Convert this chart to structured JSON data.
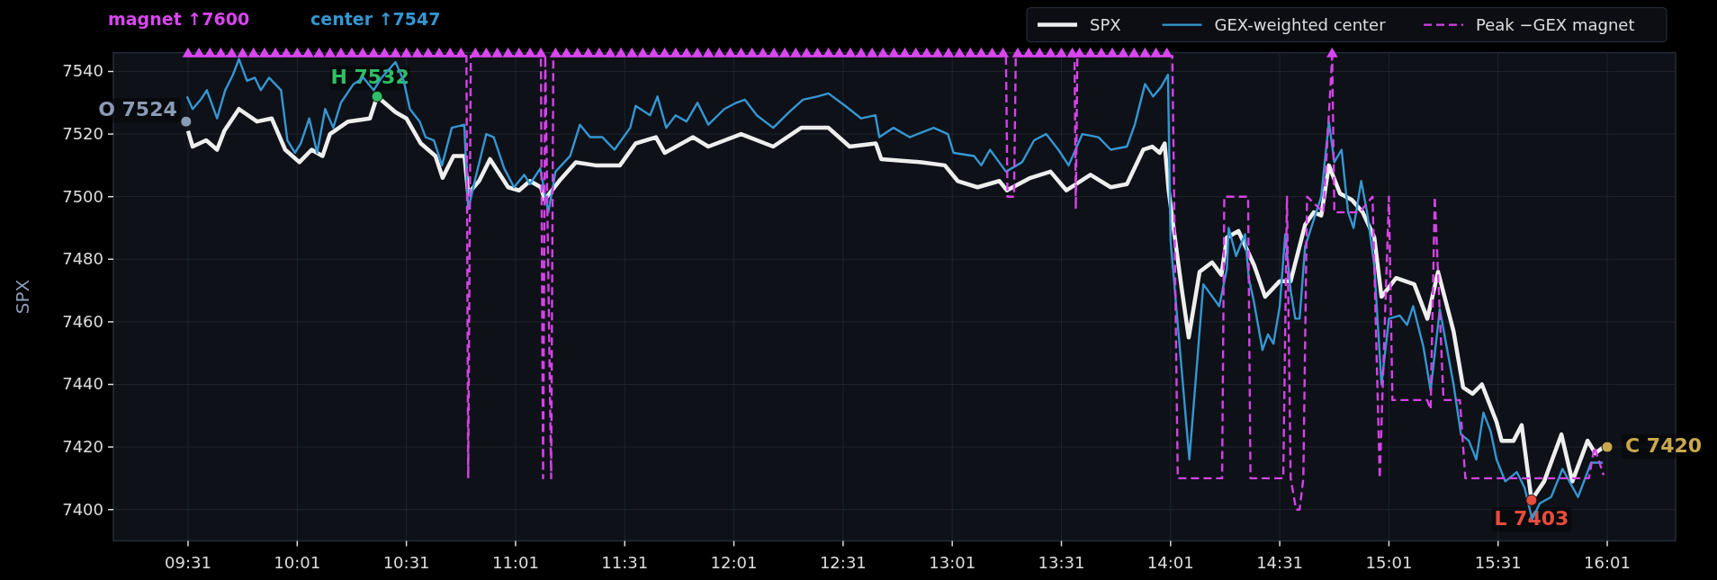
{
  "chart_data": {
    "type": "line",
    "ylabel": "SPX",
    "xlim": [
      9.175,
      16.33
    ],
    "ylim": [
      7390,
      7546
    ],
    "xticks": [
      {
        "value": 9.517,
        "label": "09:31"
      },
      {
        "value": 10.017,
        "label": "10:01"
      },
      {
        "value": 10.517,
        "label": "10:31"
      },
      {
        "value": 11.017,
        "label": "11:01"
      },
      {
        "value": 11.517,
        "label": "11:31"
      },
      {
        "value": 12.017,
        "label": "12:01"
      },
      {
        "value": 12.517,
        "label": "12:31"
      },
      {
        "value": 13.017,
        "label": "13:01"
      },
      {
        "value": 13.517,
        "label": "13:31"
      },
      {
        "value": 14.017,
        "label": "14:01"
      },
      {
        "value": 14.517,
        "label": "14:31"
      },
      {
        "value": 15.017,
        "label": "15:01"
      },
      {
        "value": 15.517,
        "label": "15:31"
      },
      {
        "value": 16.017,
        "label": "16:01"
      }
    ],
    "yticks": [
      7400,
      7420,
      7440,
      7460,
      7480,
      7500,
      7520,
      7540
    ],
    "grid": true,
    "legend": "top right",
    "series": [
      {
        "name": "SPX",
        "color": "#eeeeee",
        "x": [
          9.517,
          9.538,
          9.6,
          9.65,
          9.683,
          9.75,
          9.833,
          9.9,
          9.962,
          10.027,
          10.083,
          10.133,
          10.167,
          10.25,
          10.35,
          10.383,
          10.467,
          10.517,
          10.583,
          10.65,
          10.683,
          10.733,
          10.783,
          10.8,
          10.85,
          10.9,
          10.983,
          11.033,
          11.083,
          11.133,
          11.15,
          11.217,
          11.293,
          11.383,
          11.495,
          11.567,
          11.66,
          11.7,
          11.83,
          11.9,
          12.05,
          12.197,
          12.325,
          12.45,
          12.547,
          12.667,
          12.692,
          12.877,
          12.983,
          13.042,
          13.133,
          13.233,
          13.267,
          13.375,
          13.467,
          13.54,
          13.65,
          13.743,
          13.817,
          13.892,
          13.933,
          13.967,
          13.99,
          14.008,
          14.067,
          14.1,
          14.15,
          14.207,
          14.25,
          14.275,
          14.328,
          14.4,
          14.45,
          14.517,
          14.567,
          14.633,
          14.673,
          14.707,
          14.742,
          14.793,
          14.847,
          14.897,
          14.95,
          14.983,
          15.05,
          15.133,
          15.193,
          15.242,
          15.313,
          15.357,
          15.4,
          15.443,
          15.51,
          15.533,
          15.588,
          15.625,
          15.67,
          15.728,
          15.807,
          15.857,
          15.927,
          15.962,
          16.0
        ],
        "values": [
          7521,
          7516,
          7518,
          7515,
          7521,
          7528,
          7524,
          7525,
          7515,
          7511,
          7515,
          7513,
          7520,
          7524,
          7525,
          7532,
          7527,
          7525,
          7517,
          7513,
          7506,
          7513,
          7513,
          7501,
          7505,
          7512,
          7503,
          7502,
          7505,
          7503,
          7499,
          7505,
          7511,
          7510,
          7510,
          7517,
          7519,
          7514,
          7519,
          7516,
          7520,
          7516,
          7522,
          7522,
          7516,
          7517,
          7512,
          7511,
          7510,
          7505,
          7503,
          7505,
          7502,
          7506,
          7508,
          7502,
          7507,
          7503,
          7504,
          7515,
          7516,
          7514,
          7517,
          7502,
          7471,
          7455,
          7476,
          7479,
          7475,
          7487,
          7489,
          7478,
          7468,
          7473,
          7473,
          7491,
          7495,
          7494,
          7510,
          7501,
          7499,
          7495,
          7487,
          7468,
          7474,
          7472,
          7461,
          7476,
          7457,
          7439,
          7437,
          7440,
          7428,
          7422,
          7422,
          7427,
          7403,
          7409,
          7424,
          7409,
          7422,
          7418,
          7420
        ]
      },
      {
        "name": "GEX-weighted center",
        "color": "#3596d2",
        "x": [
          9.512,
          9.538,
          9.575,
          9.603,
          9.65,
          9.687,
          9.723,
          9.75,
          9.787,
          9.823,
          9.85,
          9.888,
          9.943,
          9.972,
          10.007,
          10.033,
          10.072,
          10.108,
          10.145,
          10.182,
          10.217,
          10.275,
          10.32,
          10.367,
          10.403,
          10.467,
          10.505,
          10.533,
          10.578,
          10.605,
          10.643,
          10.68,
          10.725,
          10.782,
          10.8,
          10.837,
          10.883,
          10.917,
          10.965,
          11.01,
          11.057,
          11.083,
          11.13,
          11.167,
          11.2,
          11.267,
          11.312,
          11.358,
          11.415,
          11.47,
          11.542,
          11.567,
          11.633,
          11.667,
          11.707,
          11.75,
          11.8,
          11.85,
          11.9,
          11.973,
          12.028,
          12.067,
          12.122,
          12.197,
          12.27,
          12.333,
          12.398,
          12.45,
          12.527,
          12.6,
          12.665,
          12.683,
          12.748,
          12.822,
          12.932,
          12.997,
          13.023,
          13.117,
          13.15,
          13.19,
          13.263,
          13.337,
          13.392,
          13.447,
          13.503,
          13.55,
          13.613,
          13.687,
          13.743,
          13.817,
          13.853,
          13.9,
          13.937,
          13.973,
          14.005,
          14.017,
          14.103,
          14.167,
          14.24,
          14.275,
          14.283,
          14.317,
          14.358,
          14.375,
          14.397,
          14.438,
          14.463,
          14.488,
          14.517,
          14.542,
          14.567,
          14.588,
          14.608,
          14.633,
          14.707,
          14.742,
          14.767,
          14.8,
          14.83,
          14.855,
          14.89,
          14.917,
          14.95,
          14.983,
          15.017,
          15.067,
          15.1,
          15.128,
          15.175,
          15.208,
          15.25,
          15.313,
          15.347,
          15.383,
          15.417,
          15.45,
          15.483,
          15.51,
          15.55,
          15.603,
          15.638,
          15.673,
          15.708,
          15.76,
          15.812,
          15.883,
          15.943,
          15.997
        ],
        "values": [
          7532,
          7528,
          7531,
          7534,
          7525,
          7534,
          7539,
          7544,
          7537,
          7538,
          7534,
          7538,
          7534,
          7518,
          7514,
          7517,
          7525,
          7514,
          7528,
          7522,
          7530,
          7536,
          7538,
          7534,
          7538,
          7543,
          7537,
          7528,
          7524,
          7519,
          7518,
          7510,
          7522,
          7523,
          7496,
          7507,
          7520,
          7519,
          7509,
          7503,
          7507,
          7504,
          7509,
          7495,
          7508,
          7513,
          7523,
          7519,
          7519,
          7515,
          7522,
          7529,
          7526,
          7532,
          7522,
          7526,
          7524,
          7530,
          7523,
          7528,
          7530,
          7531,
          7526,
          7522,
          7527,
          7531,
          7532,
          7533,
          7529,
          7525,
          7526,
          7519,
          7522,
          7519,
          7522,
          7520,
          7514,
          7513,
          7510,
          7515,
          7508,
          7511,
          7518,
          7520,
          7515,
          7510,
          7520,
          7519,
          7515,
          7516,
          7523,
          7536,
          7532,
          7535,
          7539,
          7486,
          7416,
          7472,
          7465,
          7477,
          7490,
          7481,
          7488,
          7474,
          7467,
          7451,
          7456,
          7453,
          7465,
          7488,
          7470,
          7461,
          7461,
          7484,
          7500,
          7524,
          7511,
          7515,
          7495,
          7490,
          7505,
          7495,
          7478,
          7440,
          7461,
          7462,
          7459,
          7465,
          7452,
          7438,
          7464,
          7440,
          7424,
          7422,
          7416,
          7431,
          7425,
          7416,
          7409,
          7412,
          7407,
          7397,
          7402,
          7404,
          7413,
          7404,
          7415,
          7415
        ]
      },
      {
        "name": "Peak −GEX magnet",
        "color": "#d443e6",
        "line_style": "dashed",
        "x": [
          9.517,
          10.792,
          10.8,
          10.812,
          11.133,
          11.143,
          11.153,
          11.18,
          11.19,
          13.263,
          13.27,
          13.3,
          13.308,
          13.577,
          13.583,
          13.59,
          14.025,
          14.05,
          14.253,
          14.263,
          14.372,
          14.383,
          14.533,
          14.55,
          14.567,
          14.592,
          14.608,
          14.625,
          14.642,
          14.717,
          14.757,
          14.767,
          14.883,
          14.942,
          14.975,
          15.017,
          15.033,
          15.192,
          15.208,
          15.227,
          15.267,
          15.342,
          15.367,
          15.933,
          15.958,
          16.0
        ],
        "values": [
          7545,
          7545,
          7410,
          7545,
          7545,
          7410,
          7545,
          7410,
          7545,
          7545,
          7500,
          7500,
          7545,
          7545,
          7496,
          7545,
          7545,
          7410,
          7410,
          7500,
          7500,
          7410,
          7410,
          7500,
          7410,
          7400,
          7400,
          7410,
          7500,
          7495,
          7545,
          7495,
          7495,
          7500,
          7410,
          7500,
          7435,
          7435,
          7432,
          7500,
          7435,
          7435,
          7410,
          7410,
          7420,
          7411
        ]
      },
      {
        "type": "scatter",
        "marker": "triangle",
        "color": "#d946ef",
        "x": [
          9.517,
          9.567,
          9.617,
          9.667,
          9.717,
          9.767,
          9.817,
          9.867,
          9.917,
          9.967,
          10.017,
          10.067,
          10.117,
          10.167,
          10.217,
          10.267,
          10.317,
          10.367,
          10.417,
          10.467,
          10.517,
          10.567,
          10.617,
          10.667,
          10.717,
          10.767,
          10.833,
          10.883,
          10.933,
          10.983,
          11.033,
          11.083,
          11.133,
          11.2,
          11.25,
          11.3,
          11.35,
          11.4,
          11.45,
          11.5,
          11.55,
          11.6,
          11.65,
          11.7,
          11.75,
          11.8,
          11.85,
          11.9,
          11.95,
          12.0,
          12.05,
          12.1,
          12.15,
          12.2,
          12.25,
          12.3,
          12.35,
          12.4,
          12.45,
          12.5,
          12.55,
          12.6,
          12.65,
          12.7,
          12.75,
          12.8,
          12.85,
          12.9,
          12.95,
          13.0,
          13.05,
          13.1,
          13.15,
          13.2,
          13.25,
          13.317,
          13.367,
          13.417,
          13.467,
          13.517,
          13.567,
          13.6,
          13.65,
          13.7,
          13.75,
          13.8,
          13.85,
          13.9,
          13.95,
          14.0,
          14.757
        ],
        "values": [
          7545,
          7545,
          7545,
          7545,
          7545,
          7545,
          7545,
          7545,
          7545,
          7545,
          7545,
          7545,
          7545,
          7545,
          7545,
          7545,
          7545,
          7545,
          7545,
          7545,
          7545,
          7545,
          7545,
          7545,
          7545,
          7545,
          7545,
          7545,
          7545,
          7545,
          7545,
          7545,
          7545,
          7545,
          7545,
          7545,
          7545,
          7545,
          7545,
          7545,
          7545,
          7545,
          7545,
          7545,
          7545,
          7545,
          7545,
          7545,
          7545,
          7545,
          7545,
          7545,
          7545,
          7545,
          7545,
          7545,
          7545,
          7545,
          7545,
          7545,
          7545,
          7545,
          7545,
          7545,
          7545,
          7545,
          7545,
          7545,
          7545,
          7545,
          7545,
          7545,
          7545,
          7545,
          7545,
          7545,
          7545,
          7545,
          7545,
          7545,
          7545,
          7545,
          7545,
          7545,
          7545,
          7545,
          7545,
          7545,
          7545,
          7545,
          7545
        ]
      }
    ],
    "annotations": [
      "magnet ↑7600",
      "center ↑7547",
      {
        "text": "O 7524",
        "x": 9.508,
        "y": 7524
      },
      {
        "text": "H 7532",
        "x": 10.383,
        "y": 7532
      },
      {
        "text": "L 7403",
        "x": 15.67,
        "y": 7403
      },
      {
        "text": "C 7420",
        "x": 16.017,
        "y": 7420
      }
    ]
  }
}
